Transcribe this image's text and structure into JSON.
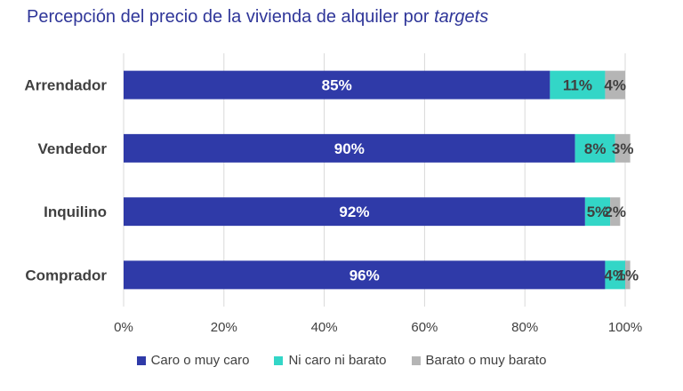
{
  "title_main": "Percepción del precio de la vivienda de alquiler por ",
  "title_italic": "targets",
  "colors": {
    "Caro o muy caro": "#2f3aa8",
    "Ni caro ni barato": "#33d6c7",
    "Barato o muy barato": "#b5b5b5",
    "title": "#2f3699",
    "axis_text": "#404040",
    "grid": "#d9d9d9"
  },
  "chart_data": {
    "type": "bar",
    "orientation": "horizontal",
    "stacked": true,
    "categories": [
      "Arrendador",
      "Vendedor",
      "Inquilino",
      "Comprador"
    ],
    "series": [
      {
        "name": "Caro o muy caro",
        "values": [
          85,
          90,
          92,
          96
        ],
        "labels": [
          "85%",
          "90%",
          "92%",
          "96%"
        ]
      },
      {
        "name": "Ni caro ni barato",
        "values": [
          11,
          8,
          5,
          4
        ],
        "labels": [
          "11%",
          "8%",
          "5%",
          "4%"
        ]
      },
      {
        "name": "Barato o muy barato",
        "values": [
          4,
          3,
          2,
          1
        ],
        "labels": [
          "4%",
          "3%",
          "2%",
          "1%"
        ]
      }
    ],
    "xlim": [
      0,
      100
    ],
    "xticks": [
      "0%",
      "20%",
      "40%",
      "60%",
      "80%",
      "100%"
    ],
    "grid": true,
    "legend_position": "bottom"
  }
}
